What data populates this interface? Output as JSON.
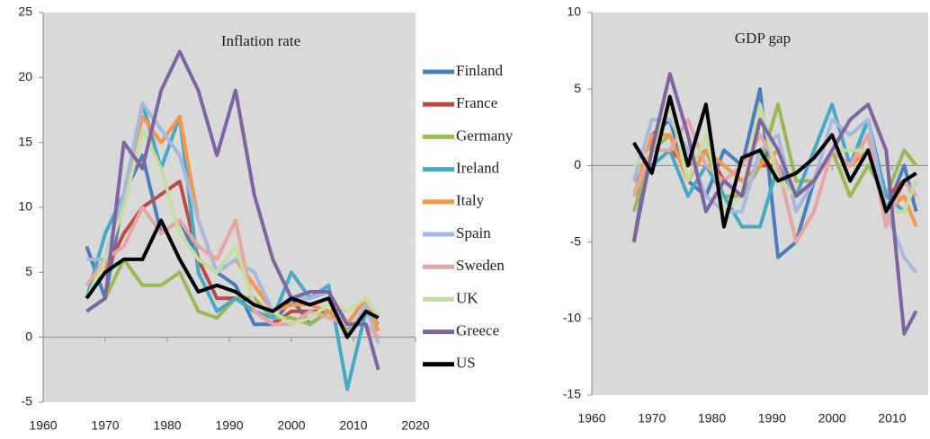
{
  "chart_data": [
    {
      "type": "line",
      "title": "Inflation rate",
      "x": [
        1967,
        1970,
        1973,
        1976,
        1979,
        1982,
        1985,
        1988,
        1991,
        1994,
        1997,
        2000,
        2003,
        2006,
        2009,
        2012,
        2014
      ],
      "xlim": [
        1960,
        2020
      ],
      "xticks": [
        1960,
        1970,
        1980,
        1990,
        2000,
        2010,
        2020
      ],
      "ylim": [
        -5,
        25
      ],
      "yticks": [
        -5,
        0,
        5,
        10,
        15,
        20,
        25
      ],
      "legend": true,
      "series": [
        {
          "name": "Finland",
          "color": "#4a7ebb",
          "values": [
            7,
            3,
            11,
            14,
            8,
            9,
            6,
            5,
            4,
            1,
            1,
            3,
            1,
            2,
            1,
            3,
            1.5
          ]
        },
        {
          "name": "France",
          "color": "#be4b48",
          "values": [
            3,
            5,
            8,
            10,
            11,
            12,
            6,
            3,
            3,
            2,
            1,
            2,
            2,
            2,
            0.5,
            2,
            1
          ]
        },
        {
          "name": "Germany",
          "color": "#98b954",
          "values": [
            2,
            3,
            6,
            4,
            4,
            5,
            2,
            1.5,
            3,
            3,
            1.5,
            1.5,
            1,
            2,
            0.5,
            2,
            1
          ]
        },
        {
          "name": "Ireland",
          "color": "#46aac5",
          "values": [
            3,
            8,
            11,
            18,
            13,
            17,
            5,
            2,
            3,
            2,
            1.5,
            5,
            3,
            4,
            -4,
            2,
            0.5
          ]
        },
        {
          "name": "Italy",
          "color": "#f79646",
          "values": [
            3,
            5,
            11,
            17,
            15,
            17,
            9,
            5,
            6,
            4,
            2,
            2.5,
            2.5,
            2,
            1,
            3,
            0.5
          ]
        },
        {
          "name": "Spain",
          "color": "#a5b9e0",
          "values": [
            6,
            6,
            11,
            18,
            16,
            14,
            9,
            5,
            6,
            5,
            2,
            3,
            3,
            3.5,
            0,
            2.5,
            -0.5
          ]
        },
        {
          "name": "Sweden",
          "color": "#e6a4a2",
          "values": [
            4,
            6,
            7,
            10,
            8,
            9,
            7,
            6,
            9,
            2,
            1,
            1,
            2,
            1.5,
            1,
            1,
            0
          ]
        },
        {
          "name": "UK",
          "color": "#c5dda0",
          "values": [
            3,
            6,
            10,
            16,
            13,
            8,
            6,
            5,
            7,
            2.5,
            2,
            1,
            1.5,
            2.5,
            2,
            3,
            1.5
          ]
        },
        {
          "name": "Greece",
          "color": "#8064a2",
          "values": [
            2,
            3,
            15,
            13,
            19,
            22,
            19,
            14,
            19,
            11,
            6,
            3,
            3.5,
            3.5,
            1,
            1,
            -2.5
          ]
        },
        {
          "name": "US",
          "color": "#000000",
          "values": [
            3,
            5,
            6,
            6,
            9,
            6,
            3.5,
            4,
            3.5,
            2.5,
            2,
            3,
            2.5,
            3,
            0,
            2,
            1.5
          ]
        }
      ]
    },
    {
      "type": "line",
      "title": "GDP gap",
      "x": [
        1967,
        1970,
        1973,
        1976,
        1979,
        1982,
        1985,
        1988,
        1991,
        1994,
        1997,
        2000,
        2003,
        2006,
        2009,
        2012,
        2014
      ],
      "xlim": [
        1960,
        2016
      ],
      "xticks": [
        1960,
        1970,
        1980,
        1990,
        2000,
        2010
      ],
      "ylim": [
        -15,
        10
      ],
      "yticks": [
        -15,
        -10,
        -5,
        0,
        5,
        10
      ],
      "legend": false,
      "series": [
        {
          "color": "#4a7ebb",
          "values": [
            -5,
            2,
            3,
            -1,
            -2,
            1,
            0,
            5,
            -6,
            -5,
            -1,
            1,
            0,
            3,
            -3,
            0,
            -3
          ]
        },
        {
          "color": "#be4b48",
          "values": [
            -2,
            0,
            1,
            0,
            1,
            -1,
            -2,
            0,
            0,
            -2,
            -1,
            1,
            0,
            1,
            -2,
            -1,
            -2
          ]
        },
        {
          "color": "#98b954",
          "values": [
            -3,
            1,
            2,
            -1,
            1,
            -2,
            -2,
            0,
            4,
            -1,
            -1,
            1,
            -2,
            0,
            -2,
            1,
            0
          ]
        },
        {
          "color": "#46aac5",
          "values": [
            -1,
            0,
            1,
            -2,
            0,
            -2,
            -4,
            -4,
            0,
            -2,
            1,
            4,
            0,
            3,
            -2,
            -3,
            -1
          ]
        },
        {
          "color": "#f79646",
          "values": [
            -2,
            2,
            2,
            -1,
            1,
            0,
            -1,
            0,
            1,
            -2,
            -1,
            1,
            0,
            1,
            -3,
            -2,
            -4
          ]
        },
        {
          "color": "#a5b9e0",
          "values": [
            -1,
            3,
            3,
            1,
            -2,
            -3,
            -3,
            1,
            2,
            -3,
            -1,
            3,
            2,
            3,
            -3,
            -6,
            -7
          ]
        },
        {
          "color": "#e6a4a2",
          "values": [
            -2,
            1,
            1,
            3,
            0,
            -1,
            0,
            2,
            0,
            -5,
            -3,
            1,
            0,
            2,
            -4,
            -1,
            -2
          ]
        },
        {
          "color": "#c5dda0",
          "values": [
            0,
            1,
            4,
            -1,
            2,
            -3,
            -2,
            4,
            -1,
            -2,
            -1,
            1,
            1,
            1,
            -3,
            -3,
            -1
          ]
        },
        {
          "color": "#8064a2",
          "values": [
            -5,
            1,
            6,
            2,
            -3,
            -1,
            -2,
            3,
            1,
            -2,
            -1,
            1,
            3,
            4,
            1,
            -11,
            -9.5
          ]
        },
        {
          "color": "#000000",
          "values": [
            1.5,
            -0.5,
            4.5,
            0,
            4,
            -4,
            0.5,
            1,
            -1,
            -0.5,
            0.5,
            2,
            -1,
            1,
            -3,
            -1,
            -0.5
          ]
        }
      ]
    }
  ]
}
